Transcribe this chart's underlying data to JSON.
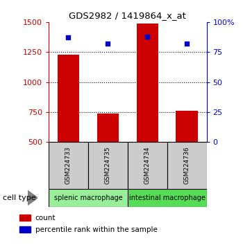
{
  "title": "GDS2982 / 1419864_x_at",
  "samples": [
    "GSM224733",
    "GSM224735",
    "GSM224734",
    "GSM224736"
  ],
  "counts": [
    1230,
    740,
    1490,
    760
  ],
  "percentiles": [
    87,
    82,
    88,
    82
  ],
  "ylim_left": [
    500,
    1500
  ],
  "ylim_right": [
    0,
    100
  ],
  "yticks_left": [
    500,
    750,
    1000,
    1250,
    1500
  ],
  "yticks_right": [
    0,
    25,
    50,
    75,
    100
  ],
  "bar_color": "#cc0000",
  "marker_color": "#0000cc",
  "bar_bottom": 500,
  "groups": [
    {
      "label": "splenic macrophage",
      "samples": [
        0,
        1
      ],
      "color": "#99ee99"
    },
    {
      "label": "intestinal macrophage",
      "samples": [
        2,
        3
      ],
      "color": "#55dd55"
    }
  ],
  "legend_items": [
    {
      "color": "#cc0000",
      "label": "count"
    },
    {
      "color": "#0000cc",
      "label": "percentile rank within the sample"
    }
  ],
  "cell_type_label": "cell type",
  "left_axis_color": "#cc0000",
  "right_axis_color": "#0000cc",
  "background_color": "#ffffff",
  "plot_bg": "#ffffff",
  "sample_box_color": "#cccccc",
  "figsize": [
    3.5,
    3.54
  ],
  "dpi": 100
}
